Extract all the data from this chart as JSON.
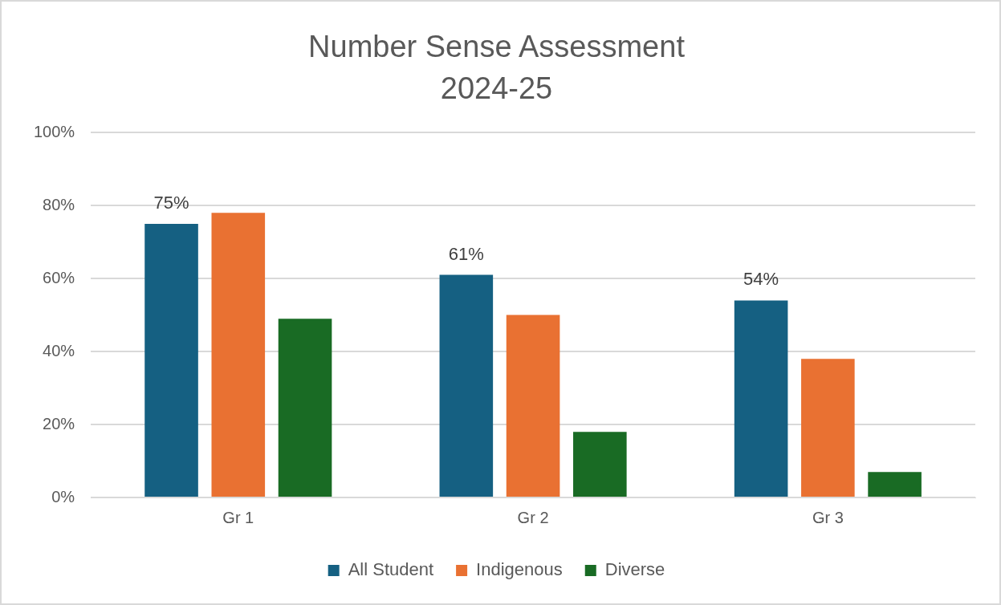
{
  "chart_data": {
    "type": "bar",
    "title": "Number Sense Assessment",
    "subtitle": "2024-25",
    "categories": [
      "Gr 1",
      "Gr 2",
      "Gr 3"
    ],
    "series": [
      {
        "name": "All Student",
        "color": "#156082",
        "values": [
          75,
          61,
          54
        ],
        "value_labels": [
          "75%",
          "61%",
          "54%"
        ]
      },
      {
        "name": "Indigenous",
        "color": "#e97132",
        "values": [
          78,
          50,
          38
        ]
      },
      {
        "name": "Diverse",
        "color": "#196b24",
        "values": [
          49,
          18,
          7
        ]
      }
    ],
    "ylim": [
      0,
      100
    ],
    "yticks": [
      {
        "value": 0,
        "label": "0%"
      },
      {
        "value": 20,
        "label": "20%"
      },
      {
        "value": 40,
        "label": "40%"
      },
      {
        "value": 60,
        "label": "60%"
      },
      {
        "value": 80,
        "label": "80%"
      },
      {
        "value": 100,
        "label": "100%"
      }
    ],
    "grid": "y",
    "legend": "bottom"
  }
}
